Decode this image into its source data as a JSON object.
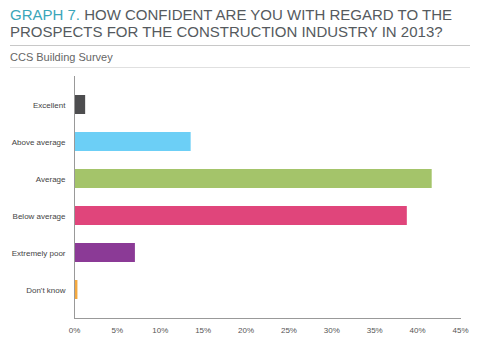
{
  "chart_data": {
    "type": "bar",
    "orientation": "horizontal",
    "title": "GRAPH 7. HOW CONFIDENT ARE YOU WITH REGARD TO THE PROSPECTS FOR THE CONSTRUCTION INDUSTRY IN 2013?",
    "subtitle": "CCS Building Survey",
    "categories": [
      "Excellent",
      "Above average",
      "Average",
      "Below average",
      "Extremely poor",
      "Don't know"
    ],
    "values": [
      1.3,
      13.6,
      41.7,
      38.8,
      7.1,
      0.4
    ],
    "colors": [
      "#4d4d4f",
      "#6ccff6",
      "#a4c46a",
      "#e0457b",
      "#8b3a96",
      "#f4a940"
    ],
    "xlim": [
      0,
      45
    ],
    "xticks": [
      {
        "value": 0,
        "label": "0%"
      },
      {
        "value": 5,
        "label": "5%"
      },
      {
        "value": 10,
        "label": "10%"
      },
      {
        "value": 15,
        "label": "15%"
      },
      {
        "value": 20,
        "label": "20%"
      },
      {
        "value": 25,
        "label": "25%"
      },
      {
        "value": 30,
        "label": "30%"
      },
      {
        "value": 35,
        "label": "35%"
      },
      {
        "value": 40,
        "label": "40%"
      },
      {
        "value": 45,
        "label": "45%"
      }
    ],
    "grid": false
  }
}
